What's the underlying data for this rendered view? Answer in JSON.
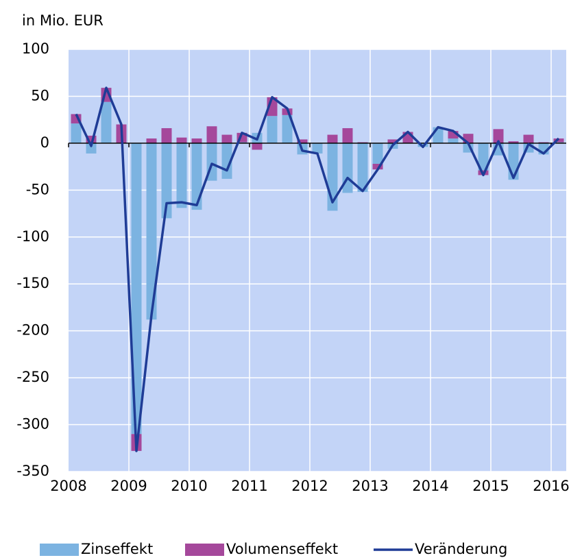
{
  "chart_data": {
    "type": "bar-line",
    "subtitle": "in Mio. EUR",
    "x_labels": [
      "2008",
      "2009",
      "2010",
      "2011",
      "2012",
      "2013",
      "2014",
      "2015",
      "2016"
    ],
    "series": [
      {
        "name": "Zinseffekt",
        "type": "bar",
        "color": "#7cb3e1",
        "values": [
          21,
          -11,
          44,
          0,
          -310,
          -188,
          -80,
          -69,
          -71,
          -40,
          -38,
          1,
          11,
          29,
          30,
          -12,
          -11,
          -72,
          -53,
          -52,
          -22,
          -6,
          0,
          -4,
          17,
          5,
          -10,
          -29,
          -13,
          -39,
          -10,
          -12,
          1
        ]
      },
      {
        "name": "Volumenseffekt",
        "type": "bar",
        "color": "#a5489b",
        "values": [
          10,
          8,
          15,
          20,
          -18,
          5,
          16,
          6,
          5,
          18,
          9,
          10,
          -7,
          20,
          7,
          4,
          0,
          9,
          16,
          1,
          -6,
          4,
          12,
          0,
          0,
          8,
          10,
          -5,
          15,
          2,
          9,
          1,
          4
        ]
      },
      {
        "name": "Veränderung",
        "type": "line",
        "color": "#1f3c96",
        "values": [
          31,
          -3,
          59,
          20,
          -328,
          -183,
          -64,
          -63,
          -66,
          -22,
          -29,
          11,
          4,
          49,
          37,
          -8,
          -11,
          -63,
          -37,
          -51,
          -28,
          -2,
          12,
          -4,
          17,
          13,
          0,
          -34,
          2,
          -37,
          -1,
          -11,
          5
        ]
      }
    ],
    "ylim": [
      -350,
      100
    ],
    "yticks": [
      -350,
      -300,
      -250,
      -200,
      -150,
      -100,
      -50,
      0,
      50,
      100
    ],
    "grid": true,
    "background": "#c3d4f7",
    "legend": "bottom"
  }
}
